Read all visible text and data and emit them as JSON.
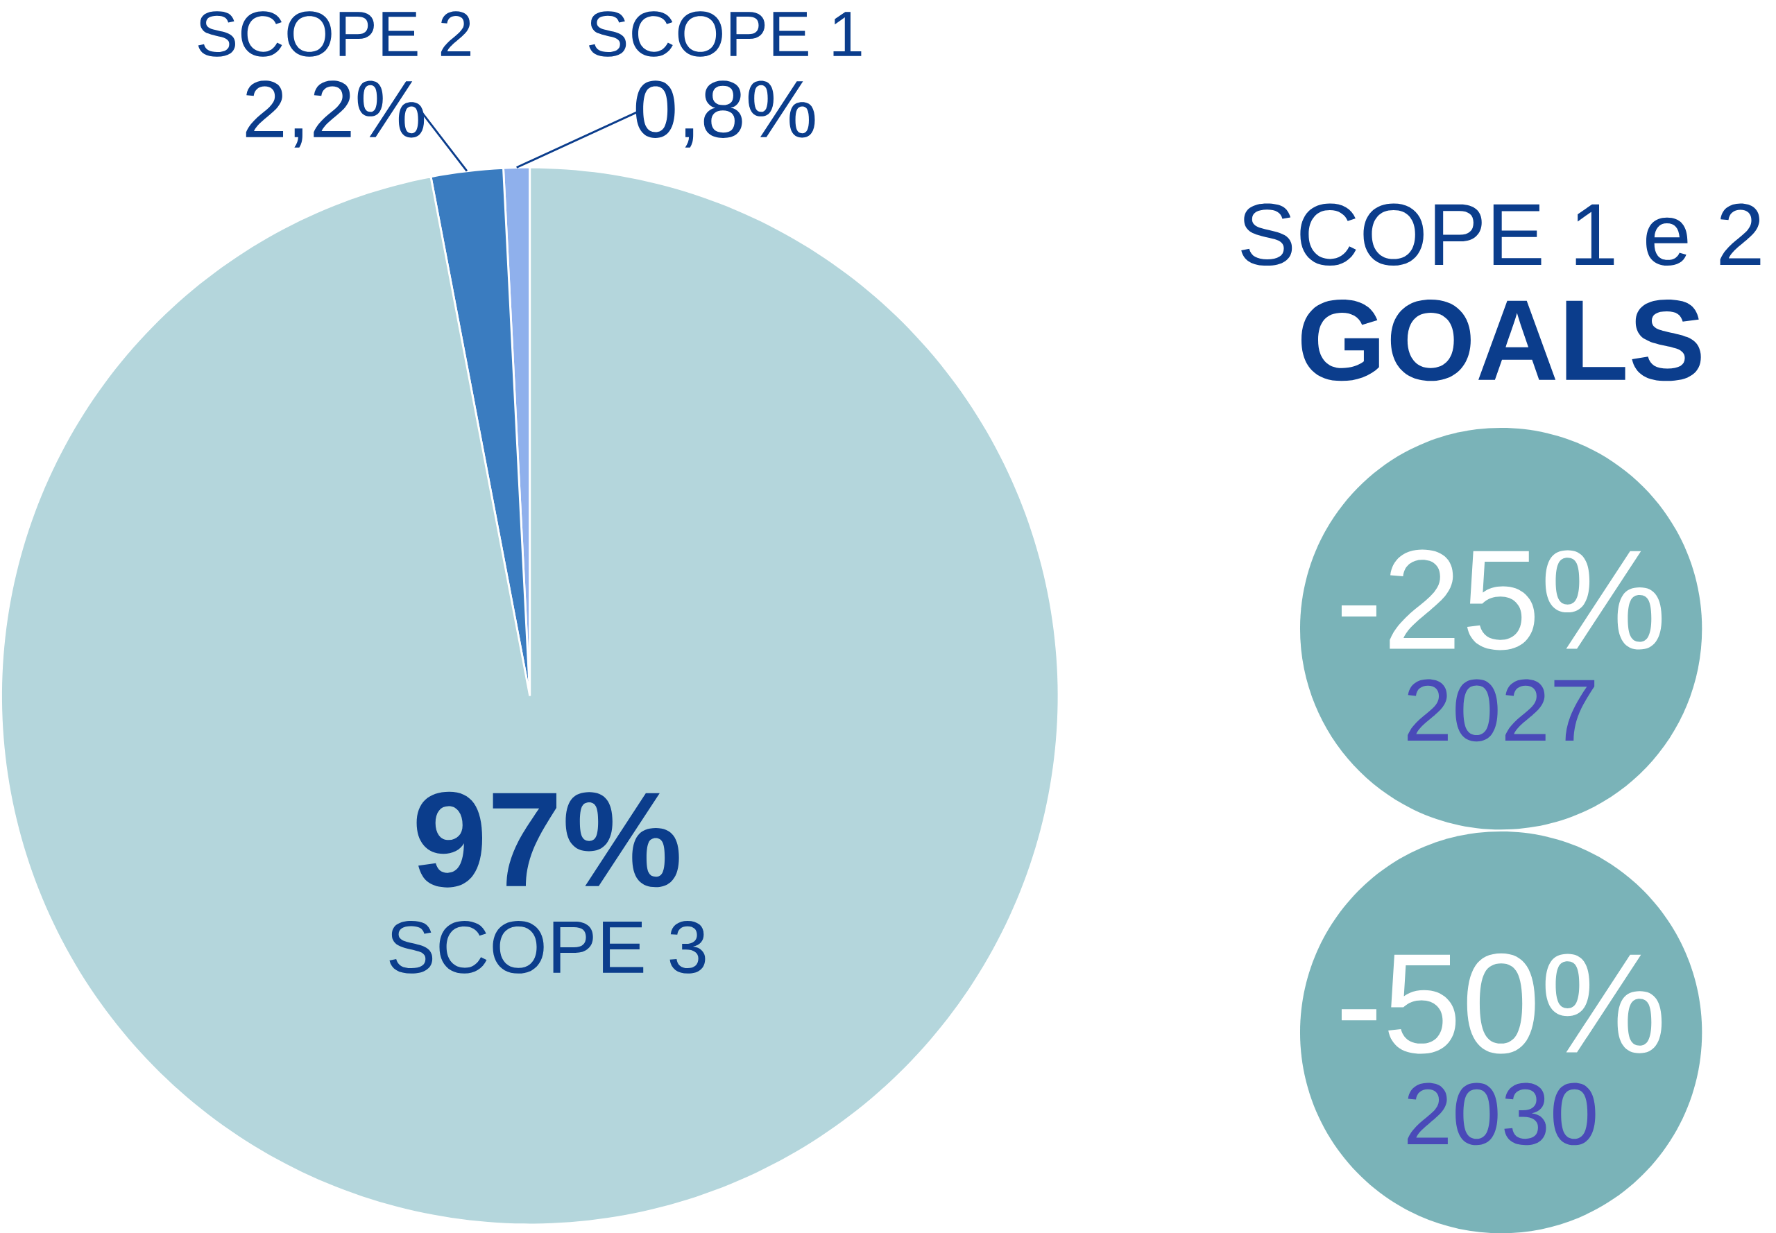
{
  "chart_data": {
    "type": "pie",
    "categories": [
      "SCOPE 1",
      "SCOPE 2",
      "SCOPE 3"
    ],
    "values": [
      0.8,
      2.2,
      97
    ],
    "value_labels": [
      "0,8%",
      "2,2%",
      "97%"
    ],
    "colors": [
      "#8fb0ec",
      "#3a7cc0",
      "#b4d6dc"
    ],
    "annotations": [
      "SCOPE 1 e 2",
      "GOALS",
      "-25%",
      "2027",
      "-50%",
      "2030"
    ]
  }
}
